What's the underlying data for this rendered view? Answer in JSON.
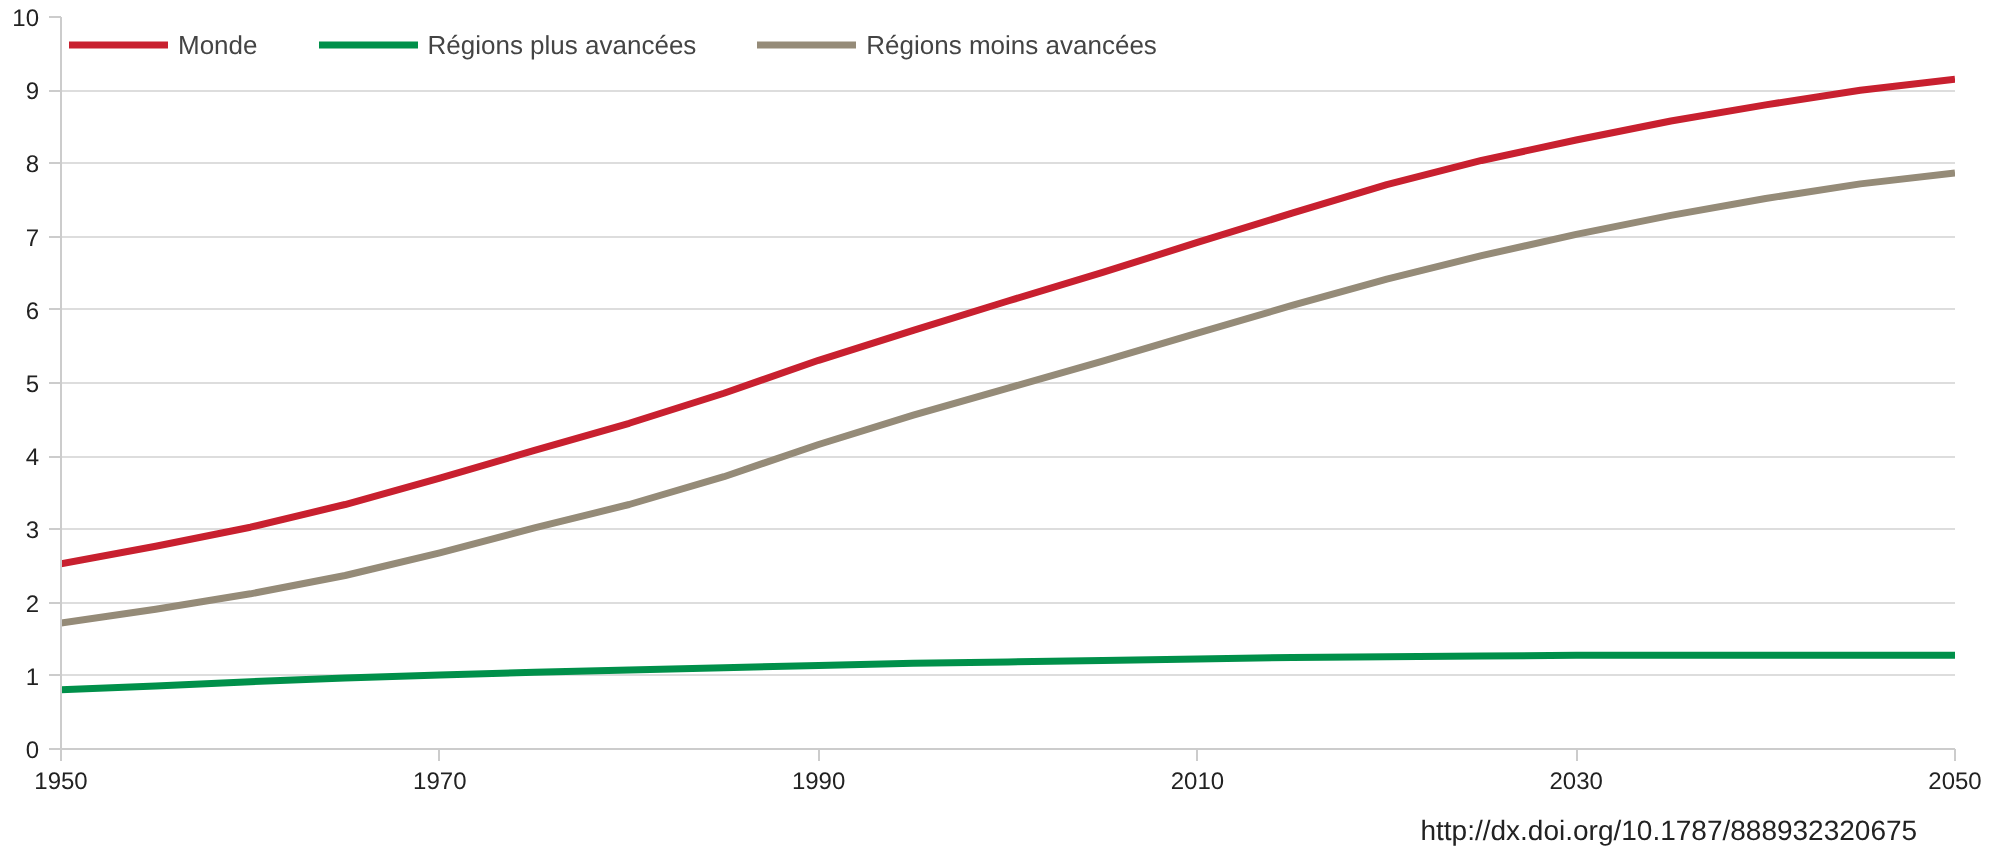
{
  "chart_data": {
    "type": "line",
    "x": [
      1950,
      1955,
      1960,
      1965,
      1970,
      1975,
      1980,
      1985,
      1990,
      1995,
      2000,
      2005,
      2010,
      2015,
      2020,
      2025,
      2030,
      2035,
      2040,
      2045,
      2050
    ],
    "series": [
      {
        "name": "Monde",
        "color": "#c8202f",
        "values": [
          2.53,
          2.77,
          3.03,
          3.34,
          3.7,
          4.08,
          4.45,
          4.86,
          5.31,
          5.72,
          6.12,
          6.51,
          6.92,
          7.32,
          7.71,
          8.04,
          8.32,
          8.58,
          8.8,
          9.0,
          9.15
        ]
      },
      {
        "name": "Régions plus avancées",
        "color": "#00904a",
        "values": [
          0.81,
          0.86,
          0.92,
          0.97,
          1.01,
          1.05,
          1.08,
          1.11,
          1.14,
          1.17,
          1.19,
          1.21,
          1.23,
          1.25,
          1.26,
          1.27,
          1.28,
          1.28,
          1.28,
          1.28,
          1.28
        ]
      },
      {
        "name": "Régions moins avancées",
        "color": "#958b78",
        "values": [
          1.72,
          1.91,
          2.12,
          2.37,
          2.68,
          3.02,
          3.34,
          3.72,
          4.16,
          4.56,
          4.93,
          5.3,
          5.68,
          6.06,
          6.42,
          6.74,
          7.03,
          7.29,
          7.52,
          7.72,
          7.87
        ]
      }
    ],
    "xlim": [
      1950,
      2050
    ],
    "xticks": [
      1950,
      1970,
      1990,
      2010,
      2030,
      2050
    ],
    "ylim": [
      0,
      10
    ],
    "yticks": [
      0,
      1,
      2,
      3,
      4,
      5,
      6,
      7,
      8,
      9,
      10
    ],
    "grid": "y",
    "legend": "top left",
    "line_style": "solid",
    "annotations": [
      "http://dx.doi.org/10.1787/888932320675"
    ]
  }
}
